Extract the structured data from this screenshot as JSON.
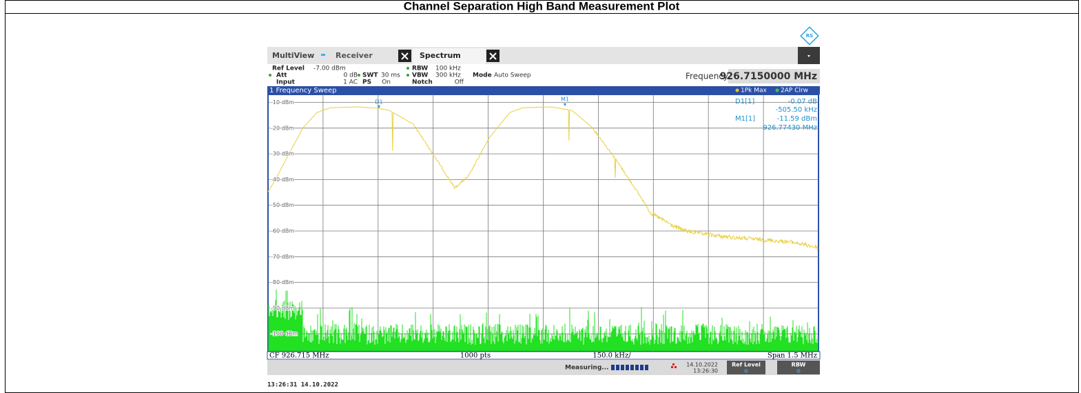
{
  "title": "Channel Separation High Band Measurement Plot",
  "toolbar": {
    "multiview": "MultiView",
    "receiver": "Receiver",
    "spectrum": "Spectrum"
  },
  "settings": {
    "ref_level": {
      "label": "Ref Level",
      "value": "-7.00 dBm"
    },
    "att": {
      "label": "Att",
      "value": "0 dB"
    },
    "input": {
      "label": "Input",
      "value": "1 AC"
    },
    "swt": {
      "label": "SWT",
      "value": "30 ms"
    },
    "ps": {
      "label": "PS",
      "value": "On"
    },
    "rbw": {
      "label": "RBW",
      "value": "100 kHz"
    },
    "vbw": {
      "label": "VBW",
      "value": "300 kHz"
    },
    "notch": {
      "label": "Notch",
      "value": "Off"
    },
    "mode": {
      "label": "Mode",
      "value": "Auto Sweep"
    },
    "frequency": {
      "label": "Frequency",
      "value": "926.7150000 MHz"
    }
  },
  "window": {
    "title": "1 Frequency Sweep",
    "traces": [
      "1Pk Max",
      "2AP Clrw"
    ]
  },
  "y_labels": [
    "-10 dBm",
    "-20 dBm",
    "-30 dBm",
    "-40 dBm",
    "-50 dBm",
    "-60 dBm",
    "-70 dBm",
    "-80 dBm",
    "-90 dBm",
    "-100 dBm"
  ],
  "markers": [
    {
      "name": "D1[1]",
      "value": "-0.07 dB",
      "x": "-505.50 kHz"
    },
    {
      "name": "M1[1]",
      "value": "-11.59 dBm",
      "x": "926.77430 MHz"
    }
  ],
  "marker_tags": [
    "D1",
    "M1"
  ],
  "footer": {
    "cf": "CF 926.715 MHz",
    "points": "1000 pts",
    "div": "150.0 kHz/",
    "span": "Span 1.5 MHz"
  },
  "status": {
    "state": "Measuring...",
    "date": "14.10.2022",
    "time": "13:26:30",
    "buttons": [
      "Ref Level",
      "RBW"
    ]
  },
  "timestamp": "13:26:31  14.10.2022"
}
